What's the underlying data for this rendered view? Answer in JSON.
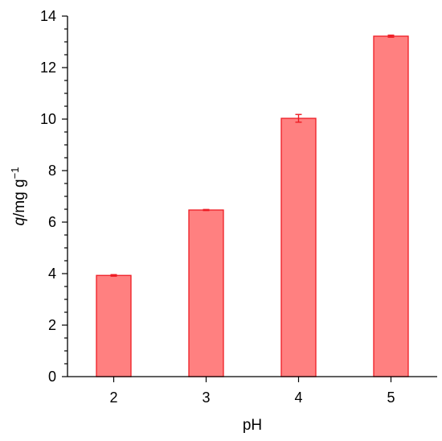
{
  "chart_data": {
    "type": "bar",
    "categories": [
      "2",
      "3",
      "4",
      "5"
    ],
    "values": [
      3.93,
      6.47,
      10.03,
      13.22
    ],
    "errors": [
      0.03,
      0.02,
      0.15,
      0.04
    ],
    "xlabel": "pH",
    "ylabel": {
      "italic": "q",
      "rest": "/mg g",
      "superscript": "−1"
    },
    "ylim": [
      0,
      14
    ],
    "yticks": [
      0,
      2,
      4,
      6,
      8,
      10,
      12,
      14
    ],
    "minor_ytick_step": 0.5,
    "grid": false,
    "legend": "none",
    "colors": {
      "bar_fill": "#ff8080",
      "bar_stroke": "#ee1c24",
      "error_bar": "#ee1c24",
      "axis": "#000000"
    }
  }
}
